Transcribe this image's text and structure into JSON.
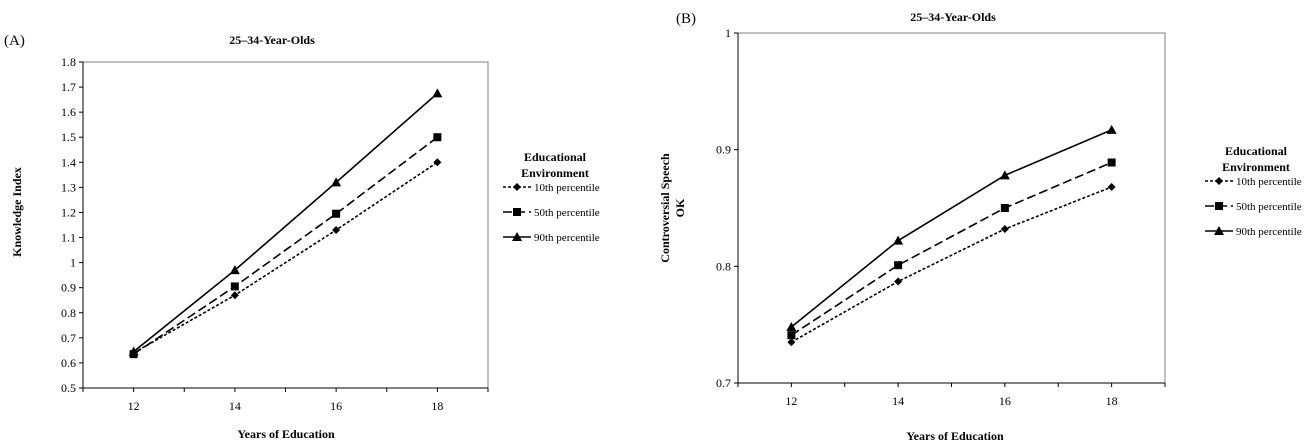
{
  "chart_data": [
    {
      "type": "line",
      "panel_label": "(A)",
      "title": "25–34-Year-Olds",
      "xlabel": "Years of Education",
      "ylabel": "Knowledge Index",
      "x": [
        12,
        14,
        16,
        18
      ],
      "x_ticks": [
        "12",
        "14",
        "16",
        "18"
      ],
      "xlim": [
        11,
        19
      ],
      "ylim": [
        0.5,
        1.8
      ],
      "y_ticks": [
        "0.5",
        "0.6",
        "0.7",
        "0.8",
        "0.9",
        "1",
        "1.1",
        "1.2",
        "1.3",
        "1.4",
        "1.5",
        "1.6",
        "1.7",
        "1.8"
      ],
      "grid": false,
      "legend_title_lines": [
        "Educational",
        "Environment"
      ],
      "legend_placement": "right",
      "series": [
        {
          "name": "10th percentile",
          "values": [
            0.64,
            0.87,
            1.13,
            1.4
          ],
          "marker": "diamond",
          "dash": "short"
        },
        {
          "name": "50th percentile",
          "values": [
            0.635,
            0.905,
            1.195,
            1.5
          ],
          "marker": "square",
          "dash": "long"
        },
        {
          "name": "90th percentile",
          "values": [
            0.645,
            0.97,
            1.32,
            1.675
          ],
          "marker": "triangle",
          "dash": "solid"
        }
      ]
    },
    {
      "type": "line",
      "panel_label": "(B)",
      "title": "25–34-Year-Olds",
      "xlabel": "Years of Education",
      "ylabel_lines": [
        "Controversial Speech",
        "OK"
      ],
      "x": [
        12,
        14,
        16,
        18
      ],
      "x_ticks": [
        "12",
        "14",
        "16",
        "18"
      ],
      "xlim": [
        11,
        19
      ],
      "ylim": [
        0.7,
        1.0
      ],
      "y_ticks": [
        "0.7",
        "0.8",
        "0.9",
        "1"
      ],
      "grid": false,
      "legend_title_lines": [
        "Educational",
        "Environment"
      ],
      "legend_placement": "right",
      "series": [
        {
          "name": "10th percentile",
          "values": [
            0.735,
            0.787,
            0.832,
            0.868
          ],
          "marker": "diamond",
          "dash": "short"
        },
        {
          "name": "50th percentile",
          "values": [
            0.741,
            0.801,
            0.85,
            0.889
          ],
          "marker": "square",
          "dash": "long"
        },
        {
          "name": "90th percentile",
          "values": [
            0.748,
            0.822,
            0.878,
            0.917
          ],
          "marker": "triangle",
          "dash": "solid"
        }
      ]
    }
  ]
}
